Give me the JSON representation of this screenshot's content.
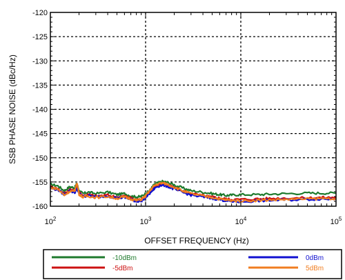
{
  "chart_data": {
    "type": "line",
    "title": "",
    "xlabel": "OFFSET FREQUENCY (Hz)",
    "ylabel": "SSB PHASE NOISE (dBc/Hz)",
    "xscale": "log",
    "xlim": [
      100,
      100000
    ],
    "ylim": [
      -160,
      -120
    ],
    "grid": true,
    "grid_style": "dotted",
    "legend_position": "bottom",
    "x_ticks": [
      {
        "base": "10",
        "exp": "2"
      },
      {
        "base": "10",
        "exp": "3"
      },
      {
        "base": "10",
        "exp": "4"
      },
      {
        "base": "10",
        "exp": "5"
      }
    ],
    "y_ticks": [
      "-120",
      "-125",
      "-130",
      "-135",
      "-140",
      "-145",
      "-150",
      "-155",
      "-160"
    ],
    "x": [
      100,
      120,
      140,
      160,
      180,
      190,
      200,
      220,
      250,
      300,
      400,
      500,
      600,
      700,
      800,
      900,
      1000,
      1100,
      1200,
      1300,
      1500,
      1700,
      2000,
      2500,
      3000,
      4000,
      5000,
      6000,
      7000,
      8000,
      10000,
      15000,
      20000,
      30000,
      50000,
      70000,
      100000
    ],
    "series": [
      {
        "name": "-10dBm",
        "color": "#1e7a2c",
        "values": [
          -155.5,
          -155.8,
          -156.8,
          -156.0,
          -156.2,
          -155.3,
          -156.8,
          -157.4,
          -157.1,
          -157.4,
          -157.1,
          -157.6,
          -157.4,
          -157.9,
          -158.1,
          -158.0,
          -157.4,
          -156.8,
          -155.8,
          -155.3,
          -154.9,
          -155.1,
          -155.6,
          -156.3,
          -156.8,
          -157.1,
          -157.4,
          -157.6,
          -157.8,
          -157.7,
          -157.6,
          -157.6,
          -157.5,
          -157.4,
          -157.3,
          -157.3,
          -157.3
        ]
      },
      {
        "name": "-5dBm",
        "color": "#cc1111",
        "values": [
          -156.0,
          -156.4,
          -157.4,
          -156.5,
          -156.9,
          -156.0,
          -157.1,
          -157.8,
          -157.6,
          -157.9,
          -157.7,
          -158.1,
          -157.9,
          -158.3,
          -158.7,
          -158.6,
          -157.9,
          -157.1,
          -156.3,
          -155.8,
          -155.3,
          -155.6,
          -156.2,
          -156.9,
          -157.4,
          -157.8,
          -158.1,
          -158.3,
          -158.5,
          -158.6,
          -158.6,
          -158.5,
          -158.4,
          -158.3,
          -158.3,
          -158.2,
          -158.2
        ]
      },
      {
        "name": "0dBm",
        "color": "#1010d0",
        "values": [
          -156.3,
          -156.6,
          -157.6,
          -156.8,
          -157.2,
          -156.5,
          -157.4,
          -158.0,
          -157.8,
          -158.1,
          -157.9,
          -158.3,
          -158.2,
          -158.6,
          -159.0,
          -158.9,
          -158.2,
          -157.4,
          -156.6,
          -156.0,
          -155.6,
          -155.9,
          -156.5,
          -157.2,
          -157.7,
          -158.1,
          -158.4,
          -158.6,
          -158.9,
          -159.0,
          -159.1,
          -158.9,
          -158.8,
          -158.7,
          -158.6,
          -158.5,
          -158.5
        ]
      },
      {
        "name": "5dBm",
        "color": "#f07d20",
        "values": [
          -156.1,
          -156.5,
          -157.7,
          -156.9,
          -157.0,
          -155.1,
          -157.5,
          -158.1,
          -157.9,
          -158.2,
          -158.0,
          -158.4,
          -158.1,
          -158.5,
          -158.8,
          -158.6,
          -157.9,
          -156.9,
          -156.0,
          -155.5,
          -155.2,
          -155.5,
          -156.1,
          -156.9,
          -157.4,
          -157.9,
          -158.2,
          -158.5,
          -158.7,
          -158.8,
          -158.9,
          -158.8,
          -158.7,
          -158.6,
          -158.5,
          -158.4,
          -158.4
        ]
      }
    ]
  },
  "legend": {
    "items": [
      {
        "label": "-10dBm",
        "color": "#1e7a2c"
      },
      {
        "label": "-5dBm",
        "color": "#cc1111"
      },
      {
        "label": "0dBm",
        "color": "#1010d0"
      },
      {
        "label": "5dBm",
        "color": "#f07d20"
      }
    ]
  }
}
